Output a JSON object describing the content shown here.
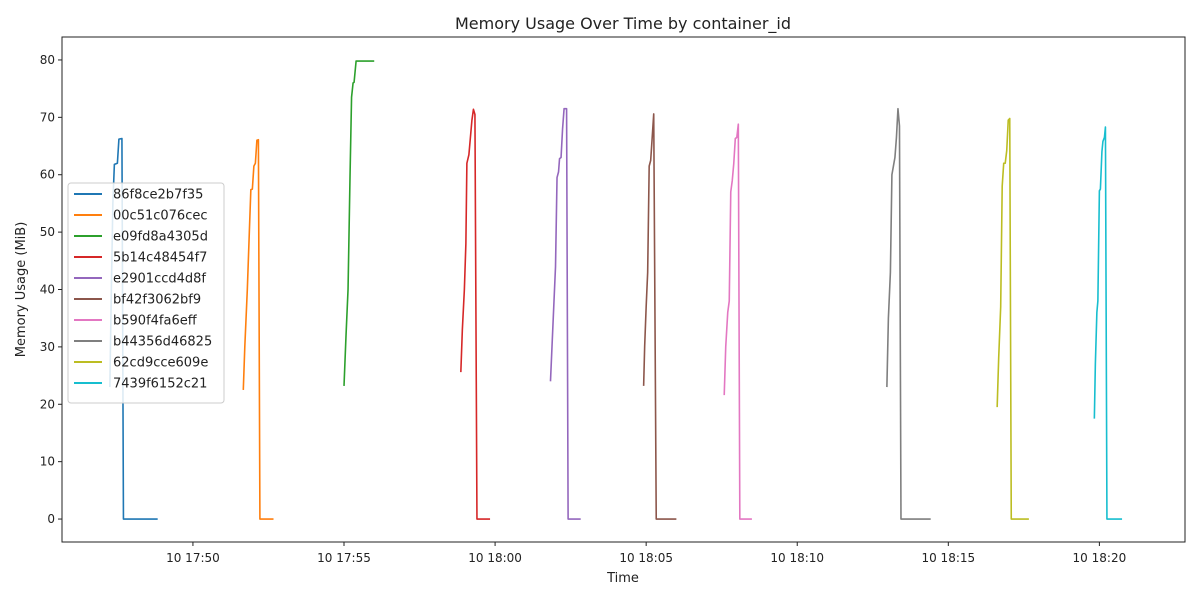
{
  "chart_data": {
    "type": "line",
    "title": "Memory Usage Over Time by container_id",
    "xlabel": "Time",
    "ylabel": "Memory Usage (MiB)",
    "x_axis_kind": "time",
    "xlim": [
      "17:45:40",
      "18:22:50"
    ],
    "ylim": [
      -4,
      84
    ],
    "y_ticks": [
      0,
      10,
      20,
      30,
      40,
      50,
      60,
      70,
      80
    ],
    "x_ticks": [
      {
        "time": "17:50",
        "label": "10 17:50"
      },
      {
        "time": "17:55",
        "label": "10 17:55"
      },
      {
        "time": "18:00",
        "label": "10 18:00"
      },
      {
        "time": "18:05",
        "label": "10 18:05"
      },
      {
        "time": "18:10",
        "label": "10 18:10"
      },
      {
        "time": "18:15",
        "label": "10 18:15"
      },
      {
        "time": "18:20",
        "label": "10 18:20"
      }
    ],
    "grid": false,
    "legend": "center-left",
    "series": [
      {
        "name": "86f8ce2b7f35",
        "color": "#1f77b4",
        "points": [
          [
            "17:47:15",
            23
          ],
          [
            "17:47:18",
            40
          ],
          [
            "17:47:21",
            55
          ],
          [
            "17:47:24",
            61.8
          ],
          [
            "17:47:30",
            62
          ],
          [
            "17:47:33",
            66.2
          ],
          [
            "17:47:39",
            66.3
          ],
          [
            "17:47:42",
            0
          ],
          [
            "17:48:50",
            0
          ]
        ]
      },
      {
        "name": "00c51c076cec",
        "color": "#ff7f0e",
        "points": [
          [
            "17:51:40",
            22.5
          ],
          [
            "17:51:43",
            30
          ],
          [
            "17:51:48",
            40
          ],
          [
            "17:51:52",
            50
          ],
          [
            "17:51:55",
            57.4
          ],
          [
            "17:51:58",
            57.5
          ],
          [
            "17:52:01",
            61.5
          ],
          [
            "17:52:04",
            62
          ],
          [
            "17:52:07",
            66
          ],
          [
            "17:52:10",
            66.1
          ],
          [
            "17:52:13",
            0
          ],
          [
            "17:52:40",
            0
          ]
        ]
      },
      {
        "name": "e09fd8a4305d",
        "color": "#2ca02c",
        "points": [
          [
            "17:55:00",
            23.2
          ],
          [
            "17:55:04",
            32
          ],
          [
            "17:55:08",
            40
          ],
          [
            "17:55:12",
            60
          ],
          [
            "17:55:15",
            73.5
          ],
          [
            "17:55:18",
            76
          ],
          [
            "17:55:20",
            76.1
          ],
          [
            "17:55:24",
            79.8
          ],
          [
            "17:56:00",
            79.8
          ]
        ]
      },
      {
        "name": "5b14c48454f7",
        "color": "#d62728",
        "points": [
          [
            "17:58:52",
            25.6
          ],
          [
            "17:58:55",
            33
          ],
          [
            "17:58:59",
            40
          ],
          [
            "17:59:02",
            48
          ],
          [
            "17:59:04",
            62
          ],
          [
            "17:59:08",
            63.5
          ],
          [
            "17:59:11",
            66.5
          ],
          [
            "17:59:14",
            69.5
          ],
          [
            "17:59:17",
            71.4
          ],
          [
            "17:59:20",
            70.5
          ],
          [
            "17:59:24",
            0
          ],
          [
            "17:59:50",
            0
          ]
        ]
      },
      {
        "name": "e2901ccd4d8f",
        "color": "#9467bd",
        "points": [
          [
            "18:01:50",
            24
          ],
          [
            "18:01:53",
            30
          ],
          [
            "18:01:57",
            38
          ],
          [
            "18:02:00",
            44
          ],
          [
            "18:02:03",
            59.5
          ],
          [
            "18:02:06",
            60.5
          ],
          [
            "18:02:08",
            62.8
          ],
          [
            "18:02:11",
            63
          ],
          [
            "18:02:14",
            68
          ],
          [
            "18:02:17",
            71.5
          ],
          [
            "18:02:22",
            71.5
          ],
          [
            "18:02:25",
            0
          ],
          [
            "18:02:50",
            0
          ]
        ]
      },
      {
        "name": "bf42f3062bf9",
        "color": "#8c564b",
        "points": [
          [
            "18:04:55",
            23.2
          ],
          [
            "18:04:57",
            30
          ],
          [
            "18:05:00",
            37
          ],
          [
            "18:05:03",
            43
          ],
          [
            "18:05:06",
            61.5
          ],
          [
            "18:05:09",
            62.5
          ],
          [
            "18:05:12",
            66.5
          ],
          [
            "18:05:15",
            70.6
          ],
          [
            "18:05:20",
            0
          ],
          [
            "18:06:00",
            0
          ]
        ]
      },
      {
        "name": "b590f4fa6eff",
        "color": "#e377c2",
        "points": [
          [
            "18:07:35",
            21.6
          ],
          [
            "18:07:38",
            30
          ],
          [
            "18:07:42",
            36
          ],
          [
            "18:07:45",
            38
          ],
          [
            "18:07:48",
            57
          ],
          [
            "18:07:51",
            59
          ],
          [
            "18:07:54",
            62
          ],
          [
            "18:07:57",
            66.3
          ],
          [
            "18:08:00",
            66.5
          ],
          [
            "18:08:03",
            68.8
          ],
          [
            "18:08:06",
            0
          ],
          [
            "18:08:30",
            0
          ]
        ]
      },
      {
        "name": "b44356d46825",
        "color": "#7f7f7f",
        "points": [
          [
            "18:12:58",
            23
          ],
          [
            "18:13:01",
            35
          ],
          [
            "18:13:05",
            43
          ],
          [
            "18:13:08",
            60
          ],
          [
            "18:13:11",
            61.5
          ],
          [
            "18:13:14",
            63
          ],
          [
            "18:13:17",
            66.5
          ],
          [
            "18:13:20",
            71.5
          ],
          [
            "18:13:23",
            68.5
          ],
          [
            "18:13:26",
            0
          ],
          [
            "18:14:25",
            0
          ]
        ]
      },
      {
        "name": "62cd9cce609e",
        "color": "#bcbd22",
        "points": [
          [
            "18:16:37",
            19.5
          ],
          [
            "18:16:40",
            28
          ],
          [
            "18:16:44",
            37
          ],
          [
            "18:16:47",
            58
          ],
          [
            "18:16:50",
            62
          ],
          [
            "18:16:53",
            62
          ],
          [
            "18:16:56",
            64.2
          ],
          [
            "18:16:59",
            69.5
          ],
          [
            "18:17:02",
            69.8
          ],
          [
            "18:17:05",
            0
          ],
          [
            "18:17:40",
            0
          ]
        ]
      },
      {
        "name": "7439f6152c21",
        "color": "#17becf",
        "points": [
          [
            "18:19:50",
            17.5
          ],
          [
            "18:19:52",
            27
          ],
          [
            "18:19:55",
            36
          ],
          [
            "18:19:57",
            38
          ],
          [
            "18:20:00",
            57.2
          ],
          [
            "18:20:02",
            57.5
          ],
          [
            "18:20:05",
            64
          ],
          [
            "18:20:07",
            65.8
          ],
          [
            "18:20:10",
            66.5
          ],
          [
            "18:20:12",
            68.3
          ],
          [
            "18:20:15",
            0
          ],
          [
            "18:20:45",
            0
          ]
        ]
      }
    ]
  }
}
